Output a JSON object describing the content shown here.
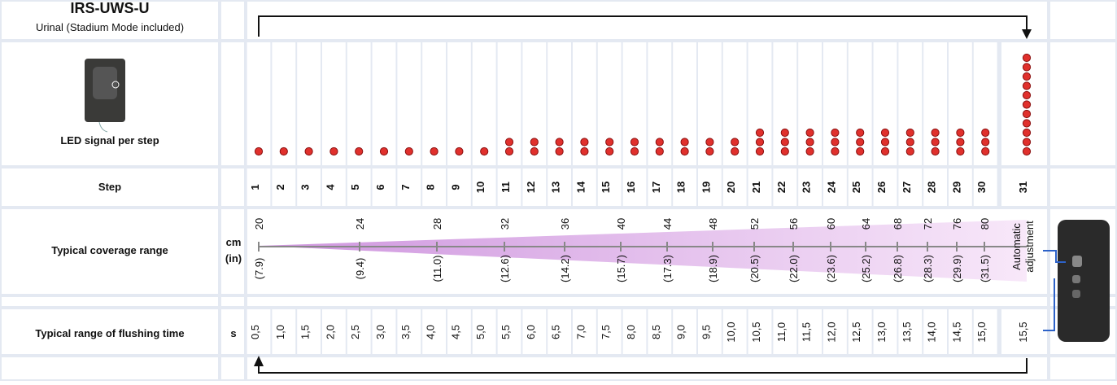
{
  "header": {
    "title": "IRS-UWS-U",
    "subtitle": "Urinal (Stadium Mode included)"
  },
  "rows": {
    "led": "LED signal per step",
    "step": "Step",
    "coverage": "Typical coverage range",
    "flushing": "Typical range of flushing time"
  },
  "units": {
    "cm": "cm",
    "in": "(in)",
    "seconds": "s"
  },
  "steps": [
    "1",
    "2",
    "3",
    "4",
    "5",
    "6",
    "7",
    "8",
    "9",
    "10",
    "11",
    "12",
    "13",
    "14",
    "15",
    "16",
    "17",
    "18",
    "19",
    "20",
    "21",
    "22",
    "23",
    "24",
    "25",
    "26",
    "27",
    "28",
    "29",
    "30",
    "31"
  ],
  "led_counts": [
    1,
    1,
    1,
    1,
    1,
    1,
    1,
    1,
    1,
    1,
    2,
    2,
    2,
    2,
    2,
    2,
    2,
    2,
    2,
    2,
    3,
    3,
    3,
    3,
    3,
    3,
    3,
    3,
    3,
    3,
    11
  ],
  "coverage_cm": [
    "20",
    "24",
    "28",
    "32",
    "36",
    "40",
    "44",
    "48",
    "52",
    "56",
    "60",
    "64",
    "68",
    "72",
    "76",
    "80"
  ],
  "coverage_in": [
    "(7.9)",
    "(9.4)",
    "(11.0)",
    "(12.6)",
    "(14.2)",
    "(15.7)",
    "(17.3)",
    "(18.9)",
    "(20.5)",
    "(22.0)",
    "(23.6)",
    "(25.2)",
    "(26.8)",
    "(28.3)",
    "(29.9)",
    "(31.5)"
  ],
  "automatic": [
    "Automatic",
    "adjustment"
  ],
  "flushing": [
    "0,5",
    "1,0",
    "1,5",
    "2,0",
    "2,5",
    "3,0",
    "3,5",
    "4,0",
    "4,5",
    "5,0",
    "5,5",
    "6,0",
    "6,5",
    "7,0",
    "7,5",
    "8,0",
    "8,5",
    "9,0",
    "9,5",
    "10,0",
    "10,5",
    "11,0",
    "11,5",
    "12,0",
    "12,5",
    "13,0",
    "13,5",
    "14,0",
    "14,5",
    "15,0",
    "15,5"
  ]
}
